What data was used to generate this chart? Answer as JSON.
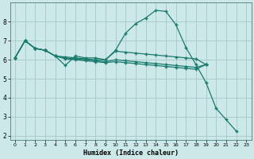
{
  "xlabel": "Humidex (Indice chaleur)",
  "bg_color": "#cce8e8",
  "grid_color": "#aacccc",
  "line_color": "#1a7a6e",
  "xlim": [
    -0.5,
    23.5
  ],
  "ylim": [
    1.8,
    9.0
  ],
  "yticks": [
    2,
    3,
    4,
    5,
    6,
    7,
    8
  ],
  "xticks": [
    0,
    1,
    2,
    3,
    4,
    5,
    6,
    7,
    8,
    9,
    10,
    11,
    12,
    13,
    14,
    15,
    16,
    17,
    18,
    19,
    20,
    21,
    22,
    23
  ],
  "series": [
    {
      "x": [
        0,
        1,
        2,
        3,
        4,
        5,
        6,
        7,
        8,
        9,
        10,
        11,
        12,
        13,
        14,
        15,
        16,
        17,
        18,
        19,
        20,
        21,
        22,
        23
      ],
      "y": [
        6.1,
        7.0,
        6.6,
        6.5,
        6.2,
        5.7,
        6.2,
        6.1,
        6.1,
        6.0,
        6.5,
        7.4,
        7.9,
        8.2,
        8.6,
        8.55,
        7.85,
        6.65,
        5.75,
        4.8,
        3.45,
        2.85,
        2.25,
        null
      ]
    },
    {
      "x": [
        0,
        1,
        2,
        3,
        4,
        5,
        6,
        7,
        8,
        9,
        10,
        11,
        12,
        13,
        14,
        15,
        16,
        17,
        18,
        19
      ],
      "y": [
        6.1,
        7.0,
        6.6,
        6.5,
        6.2,
        6.15,
        6.1,
        6.05,
        6.0,
        6.0,
        6.45,
        6.4,
        6.35,
        6.3,
        6.25,
        6.2,
        6.15,
        6.1,
        6.05,
        5.75
      ]
    },
    {
      "x": [
        0,
        1,
        2,
        3,
        4,
        5,
        6,
        7,
        8,
        9,
        10,
        11,
        12,
        13,
        14,
        15,
        16,
        17,
        18,
        19
      ],
      "y": [
        6.1,
        7.0,
        6.6,
        6.5,
        6.2,
        6.05,
        6.0,
        5.95,
        5.9,
        5.85,
        5.9,
        5.85,
        5.8,
        5.75,
        5.7,
        5.65,
        5.6,
        5.55,
        5.5,
        5.75
      ]
    },
    {
      "x": [
        0,
        1,
        2,
        3,
        4,
        5,
        6,
        7,
        8,
        9,
        10,
        11,
        12,
        13,
        14,
        15,
        16,
        17,
        18,
        19
      ],
      "y": [
        6.1,
        7.0,
        6.6,
        6.5,
        6.2,
        6.1,
        6.05,
        6.0,
        5.95,
        5.9,
        6.0,
        5.95,
        5.9,
        5.85,
        5.8,
        5.75,
        5.7,
        5.65,
        5.6,
        5.75
      ]
    }
  ]
}
